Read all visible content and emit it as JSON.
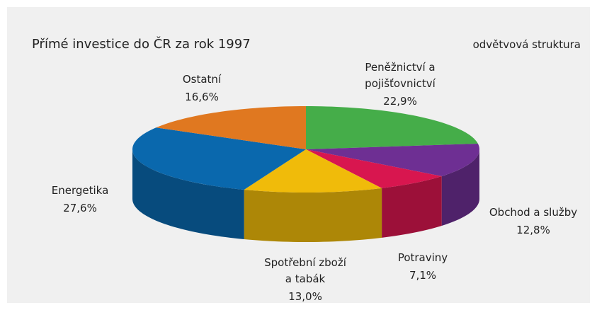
{
  "chart_data": {
    "type": "pie3d",
    "title": "Přímé investice do ČR za rok 1997",
    "subtitle": "odvětvová struktura",
    "categories": [
      "Peněžnictví a\npojišťovnictví",
      "Obchod a služby",
      "Potraviny",
      "Spotřební zboží\na tabák",
      "Energetika",
      "Ostatní"
    ],
    "values": [
      22.9,
      12.8,
      7.1,
      13.0,
      27.6,
      16.6
    ],
    "value_labels": [
      "22,9%",
      "12,8%",
      "7,1%",
      "13,0%",
      "27,6%",
      "16,6%"
    ],
    "colors": [
      "#45ad49",
      "#6e2f93",
      "#d8164f",
      "#f0bb0a",
      "#0a68ad",
      "#e07820"
    ]
  }
}
